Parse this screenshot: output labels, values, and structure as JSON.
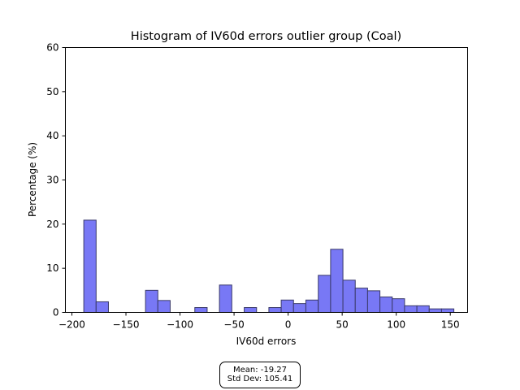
{
  "chart_data": {
    "type": "bar",
    "title": "Histogram of IV60d errors outlier group (Coal)",
    "xlabel": "IV60d errors",
    "ylabel": "Percentage (%)",
    "xlim": [
      -206,
      166
    ],
    "ylim": [
      0,
      60
    ],
    "xticks": [
      -200,
      -150,
      -100,
      -50,
      0,
      50,
      100,
      150
    ],
    "xtick_labels": [
      "−200",
      "−150",
      "−100",
      "−50",
      "0",
      "50",
      "100",
      "150"
    ],
    "yticks": [
      0,
      10,
      20,
      30,
      40,
      50,
      60
    ],
    "bin_width": 11.4,
    "bins": [
      {
        "x0": -189.0,
        "value": 20.9
      },
      {
        "x0": -177.6,
        "value": 2.4
      },
      {
        "x0": -131.9,
        "value": 5.0
      },
      {
        "x0": -120.5,
        "value": 2.7
      },
      {
        "x0": -86.3,
        "value": 1.1
      },
      {
        "x0": -63.5,
        "value": 6.2
      },
      {
        "x0": -40.6,
        "value": 1.1
      },
      {
        "x0": -17.8,
        "value": 1.1
      },
      {
        "x0": -6.4,
        "value": 2.8
      },
      {
        "x0": 5.0,
        "value": 2.0
      },
      {
        "x0": 16.4,
        "value": 2.8
      },
      {
        "x0": 27.9,
        "value": 8.4
      },
      {
        "x0": 39.3,
        "value": 14.3
      },
      {
        "x0": 50.7,
        "value": 7.3
      },
      {
        "x0": 62.1,
        "value": 5.5
      },
      {
        "x0": 73.5,
        "value": 4.9
      },
      {
        "x0": 84.9,
        "value": 3.5
      },
      {
        "x0": 96.3,
        "value": 3.1
      },
      {
        "x0": 107.7,
        "value": 1.5
      },
      {
        "x0": 119.1,
        "value": 1.5
      },
      {
        "x0": 130.5,
        "value": 0.8
      },
      {
        "x0": 141.9,
        "value": 0.8
      }
    ],
    "colors": {
      "bar_fill": "#7878f5",
      "bar_edge": "#3a3a6a"
    },
    "grid": false,
    "legend": "none"
  },
  "stats": {
    "mean_label": "Mean: -19.27",
    "std_label": "Std Dev: 105.41"
  }
}
